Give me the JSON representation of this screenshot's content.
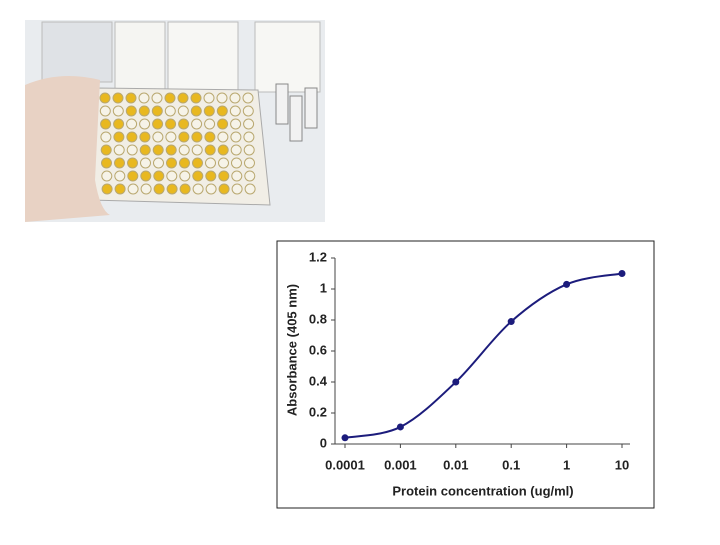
{
  "chart_data": {
    "type": "line",
    "x_label": "Protein concentration (ug/ml)",
    "y_label": "Absorbance (405 nm)",
    "x": [
      0.0001,
      0.001,
      0.01,
      0.1,
      1,
      10
    ],
    "series": [
      {
        "color": "#1c1c7c",
        "values": [
          0.04,
          0.11,
          0.4,
          0.79,
          1.03,
          1.1
        ]
      }
    ],
    "xscale": "log",
    "xlim": [
      0.0001,
      10
    ],
    "xticks": [
      0.0001,
      0.001,
      0.01,
      0.1,
      1,
      10
    ],
    "ylim": [
      0,
      1.2
    ],
    "yticks": [
      0,
      0.2,
      0.4,
      0.6,
      0.8,
      1,
      1.2
    ]
  }
}
